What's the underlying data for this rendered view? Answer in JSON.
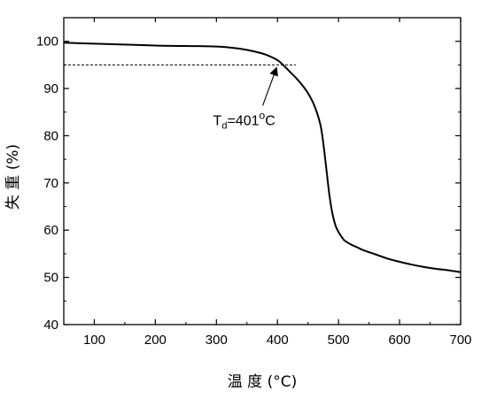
{
  "chart_data": {
    "type": "line",
    "xlabel": "温 度  (°C)",
    "ylabel": "失 重  (%)",
    "xlim": [
      50,
      700
    ],
    "ylim": [
      40,
      105
    ],
    "xticks": [
      100,
      200,
      300,
      400,
      500,
      600,
      700
    ],
    "yticks": [
      40,
      50,
      60,
      70,
      80,
      90,
      100
    ],
    "grid": false,
    "legend": "none",
    "series": [
      {
        "color": "#000000",
        "x": [
          50,
          100,
          150,
          200,
          250,
          300,
          320,
          340,
          360,
          380,
          400,
          410,
          420,
          430,
          440,
          450,
          460,
          470,
          475,
          480,
          485,
          490,
          495,
          500,
          505,
          510,
          520,
          530,
          540,
          560,
          580,
          600,
          620,
          640,
          660,
          680,
          700
        ],
        "y": [
          99.7,
          99.5,
          99.3,
          99.1,
          99.0,
          98.9,
          98.7,
          98.4,
          97.9,
          97.2,
          96.0,
          94.9,
          93.6,
          92.3,
          90.8,
          89.0,
          86.5,
          82.5,
          78.5,
          73.0,
          67.5,
          63.5,
          61.0,
          59.6,
          58.6,
          57.8,
          57.0,
          56.4,
          55.8,
          54.9,
          54.0,
          53.3,
          52.7,
          52.2,
          51.8,
          51.5,
          51.1
        ]
      }
    ],
    "reference_line": {
      "y": 95,
      "x_from": 50,
      "x_to": 430,
      "style": "dashed"
    },
    "annotation": {
      "text_main": "T",
      "text_sub": "d",
      "text_value": "=401",
      "text_degree": "o",
      "text_unit": "C",
      "point": [
        401,
        95
      ],
      "label_at": [
        370,
        83
      ]
    }
  }
}
